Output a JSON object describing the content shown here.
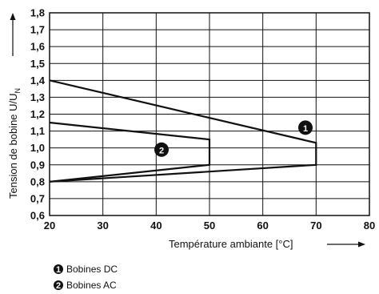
{
  "chart_data": {
    "type": "line",
    "title": "",
    "xlabel": "Température ambiante [°C]",
    "ylabel": "Tension de bobine U/U",
    "ylabel_subscript": "N",
    "xlim": [
      20,
      80
    ],
    "ylim": [
      0.6,
      1.8
    ],
    "xticks": [
      "20",
      "30",
      "40",
      "50",
      "60",
      "70",
      "80"
    ],
    "yticks": [
      "0,6",
      "0,7",
      "0,8",
      "0,9",
      "1,0",
      "1,1",
      "1,2",
      "1,3",
      "1,4",
      "1,5",
      "1,6",
      "1,7",
      "1,8"
    ],
    "grid": true,
    "series": [
      {
        "name": "Bobines DC",
        "marker": "1",
        "label_position": [
          68,
          1.12
        ],
        "points": [
          [
            20,
            1.4
          ],
          [
            70,
            1.03
          ],
          [
            70,
            0.9
          ],
          [
            20,
            0.8
          ]
        ]
      },
      {
        "name": "Bobines AC",
        "marker": "2",
        "label_position": [
          41,
          0.99
        ],
        "points": [
          [
            20,
            1.15
          ],
          [
            50,
            1.05
          ],
          [
            50,
            0.9
          ],
          [
            20,
            0.8
          ]
        ]
      }
    ],
    "legend": {
      "placement": "bottom-left",
      "entries": [
        {
          "marker": "1",
          "label": "Bobines DC"
        },
        {
          "marker": "2",
          "label": "Bobines AC"
        }
      ]
    }
  }
}
